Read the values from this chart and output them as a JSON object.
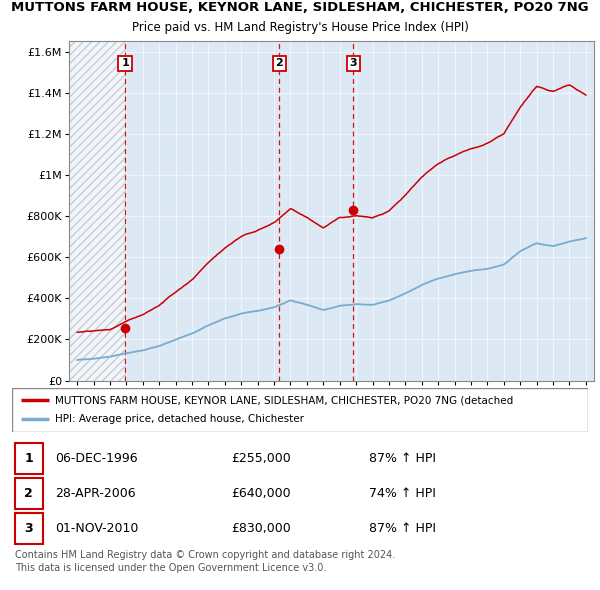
{
  "title1": "MUTTONS FARM HOUSE, KEYNOR LANE, SIDLESHAM, CHICHESTER, PO20 7NG",
  "title2": "Price paid vs. HM Land Registry's House Price Index (HPI)",
  "sales": [
    {
      "date_num": 1996.92,
      "price": 255000,
      "label": "1"
    },
    {
      "date_num": 2006.32,
      "price": 640000,
      "label": "2"
    },
    {
      "date_num": 2010.83,
      "price": 830000,
      "label": "3"
    }
  ],
  "vlines": [
    1996.92,
    2006.32,
    2010.83
  ],
  "legend_property": "MUTTONS FARM HOUSE, KEYNOR LANE, SIDLESHAM, CHICHESTER, PO20 7NG (detached",
  "legend_hpi": "HPI: Average price, detached house, Chichester",
  "table_rows": [
    [
      "1",
      "06-DEC-1996",
      "£255,000",
      "87% ↑ HPI"
    ],
    [
      "2",
      "28-APR-2006",
      "£640,000",
      "74% ↑ HPI"
    ],
    [
      "3",
      "01-NOV-2010",
      "£830,000",
      "87% ↑ HPI"
    ]
  ],
  "footnote1": "Contains HM Land Registry data © Crown copyright and database right 2024.",
  "footnote2": "This data is licensed under the Open Government Licence v3.0.",
  "property_line_color": "#cc0000",
  "hpi_line_color": "#7aabcf",
  "vline_color": "#cc0000",
  "chart_bg_color": "#dce9f5",
  "ylim": [
    0,
    1650000
  ],
  "xlim": [
    1993.5,
    2025.5
  ],
  "yticks": [
    0,
    200000,
    400000,
    600000,
    800000,
    1000000,
    1200000,
    1400000,
    1600000
  ],
  "ytick_labels": [
    "£0",
    "£200K",
    "£400K",
    "£600K",
    "£800K",
    "£1M",
    "£1.2M",
    "£1.4M",
    "£1.6M"
  ],
  "xticks": [
    1994,
    1995,
    1996,
    1997,
    1998,
    1999,
    2000,
    2001,
    2002,
    2003,
    2004,
    2005,
    2006,
    2007,
    2008,
    2009,
    2010,
    2011,
    2012,
    2013,
    2014,
    2015,
    2016,
    2017,
    2018,
    2019,
    2020,
    2021,
    2022,
    2023,
    2024,
    2025
  ],
  "hatch_start": 1993.5,
  "hatch_end": 1996.92,
  "hpi_years": [
    1994,
    1995,
    1996,
    1997,
    1998,
    1999,
    2000,
    2001,
    2002,
    2003,
    2004,
    2005,
    2006,
    2007,
    2008,
    2009,
    2010,
    2011,
    2012,
    2013,
    2014,
    2015,
    2016,
    2017,
    2018,
    2019,
    2020,
    2021,
    2022,
    2023,
    2024,
    2025
  ],
  "hpi_vals": [
    100000,
    108000,
    118000,
    135000,
    148000,
    168000,
    200000,
    228000,
    268000,
    300000,
    325000,
    340000,
    358000,
    390000,
    370000,
    345000,
    365000,
    372000,
    368000,
    385000,
    420000,
    460000,
    490000,
    510000,
    525000,
    535000,
    555000,
    620000,
    660000,
    645000,
    665000,
    680000
  ],
  "prop_years": [
    1994,
    1995,
    1996,
    1997,
    1998,
    1999,
    2000,
    2001,
    2002,
    2003,
    2004,
    2005,
    2006,
    2007,
    2008,
    2009,
    2010,
    2011,
    2012,
    2013,
    2014,
    2015,
    2016,
    2017,
    2018,
    2019,
    2020,
    2021,
    2022,
    2023,
    2024,
    2025
  ],
  "prop_vals": [
    235000,
    242000,
    252000,
    290000,
    318000,
    360000,
    425000,
    488000,
    572000,
    642000,
    696000,
    727000,
    765000,
    835000,
    792000,
    740000,
    793000,
    796000,
    787000,
    823000,
    899000,
    985000,
    1050000,
    1090000,
    1120000,
    1145000,
    1186000,
    1320000,
    1420000,
    1400000,
    1430000,
    1380000
  ]
}
